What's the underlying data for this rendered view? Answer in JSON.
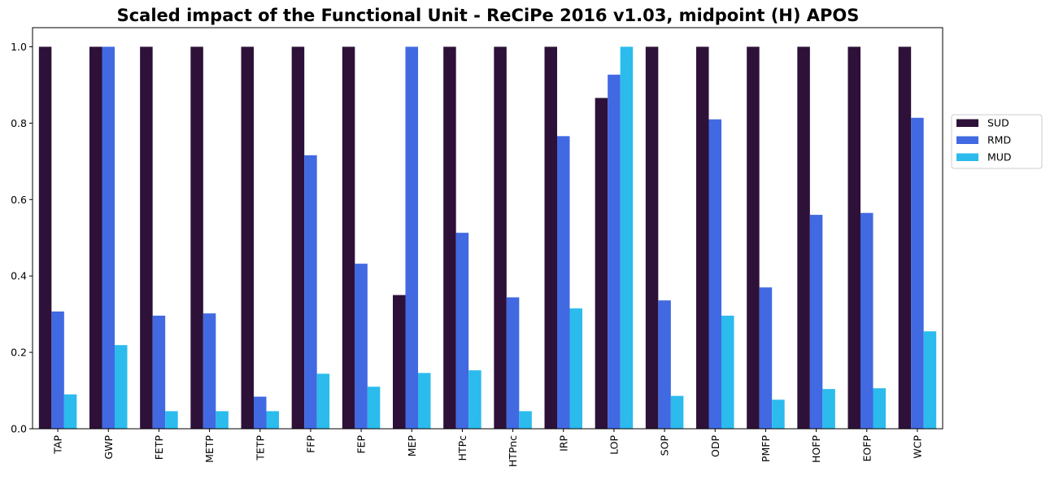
{
  "chart_data": {
    "type": "bar",
    "title": "Scaled impact of the Functional Unit - ReCiPe 2016 v1.03, midpoint (H) APOS",
    "xlabel": "",
    "ylabel": "",
    "ylim": [
      0,
      1.05
    ],
    "yticks": [
      "0.0",
      "0.2",
      "0.4",
      "0.6",
      "0.8",
      "1.0"
    ],
    "grid": false,
    "legend_position": "right",
    "categories": [
      "TAP",
      "GWP",
      "FETP",
      "METP",
      "TETP",
      "FFP",
      "FEP",
      "MEP",
      "HTPc",
      "HTPnc",
      "IRP",
      "LOP",
      "SOP",
      "ODP",
      "PMFP",
      "HOFP",
      "EOFP",
      "WCP"
    ],
    "series": [
      {
        "name": "SUD",
        "color": "#2d1138",
        "values": [
          1.0,
          1.0,
          1.0,
          1.0,
          1.0,
          1.0,
          1.0,
          0.35,
          1.0,
          1.0,
          1.0,
          0.866,
          1.0,
          1.0,
          1.0,
          1.0,
          1.0,
          1.0
        ]
      },
      {
        "name": "RMD",
        "color": "#4169e1",
        "values": [
          0.307,
          1.0,
          0.296,
          0.302,
          0.084,
          0.716,
          0.432,
          1.0,
          0.513,
          0.344,
          0.766,
          0.927,
          0.336,
          0.81,
          0.37,
          0.56,
          0.565,
          0.814
        ]
      },
      {
        "name": "MUD",
        "color": "#2bbbec",
        "values": [
          0.09,
          0.219,
          0.046,
          0.046,
          0.046,
          0.144,
          0.11,
          0.146,
          0.153,
          0.046,
          0.315,
          1.0,
          0.086,
          0.296,
          0.076,
          0.104,
          0.106,
          0.255
        ]
      }
    ]
  }
}
